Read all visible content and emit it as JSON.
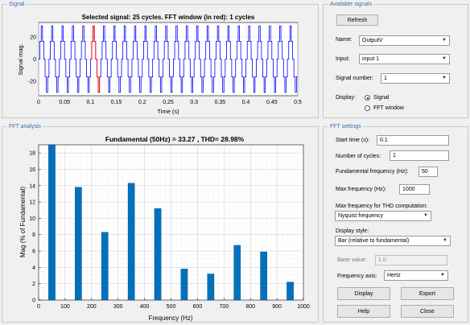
{
  "signal_panel": {
    "title": "Signal",
    "plot_title": "Selected signal: 25 cycles. FFT window (in red): 1 cycles",
    "ylabel": "Signal mag.",
    "xlabel": "Time (s)",
    "y_ticks": [
      "20",
      "0",
      "-20"
    ],
    "x_ticks": [
      "0",
      "0.05",
      "0.1",
      "0.15",
      "0.2",
      "0.25",
      "0.3",
      "0.35",
      "0.4",
      "0.45",
      "0.5"
    ],
    "trace_color": "#0000ff",
    "window_color": "#ff0000"
  },
  "available_signals": {
    "title": "Available signals",
    "refresh_label": "Refresh",
    "name_label": "Name:",
    "name_value": "OutputV",
    "input_label": "Input:",
    "input_value": "input 1",
    "signal_number_label": "Signal number:",
    "signal_number_value": "1",
    "display_label": "Display:",
    "display_options": [
      "Signal",
      "FFT window"
    ],
    "display_selected": "Signal"
  },
  "fft_panel": {
    "title": "FFT analysis",
    "plot_title": "Fundamental (50Hz) = 33.27 , THD= 28.98%",
    "ylabel": "Mag (% of Fundamental)",
    "xlabel": "Frequency (Hz)",
    "bar_color": "#0072bd"
  },
  "fft_settings": {
    "title": "FFT settings",
    "start_time_label": "Start time (s):",
    "start_time_value": "0.1",
    "num_cycles_label": "Number of cycles:",
    "num_cycles_value": "1",
    "fund_freq_label": "Fundamental frequency (Hz):",
    "fund_freq_value": "50",
    "max_freq_label": "Max frequency (Hz):",
    "max_freq_value": "1000",
    "max_freq_thd_label": "Max frequency for THD computation:",
    "max_freq_thd_value": "Nyquist frequency",
    "display_style_label": "Display style:",
    "display_style_value": "Bar (relative to fundamental)",
    "base_value_label": "Base value:",
    "base_value_value": "1.0",
    "freq_axis_label": "Frequency axis:",
    "freq_axis_value": "Hertz",
    "display_btn": "Display",
    "export_btn": "Export",
    "help_btn": "Help",
    "close_btn": "Close"
  },
  "chart_data": {
    "type": "bar",
    "title": "Fundamental (50Hz) = 33.27 , THD= 28.98%",
    "xlabel": "Frequency (Hz)",
    "ylabel": "Mag (% of Fundamental)",
    "x": [
      50,
      150,
      250,
      350,
      450,
      550,
      650,
      750,
      850,
      950
    ],
    "values": [
      19.2,
      13.8,
      8.3,
      14.3,
      11.2,
      3.8,
      3.2,
      6.7,
      5.9,
      2.2
    ],
    "xlim": [
      0,
      1000
    ],
    "ylim": [
      0,
      19
    ],
    "x_ticks": [
      0,
      100,
      200,
      300,
      400,
      500,
      600,
      700,
      800,
      900,
      1000
    ],
    "y_ticks": [
      0,
      2,
      4,
      6,
      8,
      10,
      12,
      14,
      16,
      18
    ],
    "grid": true
  }
}
